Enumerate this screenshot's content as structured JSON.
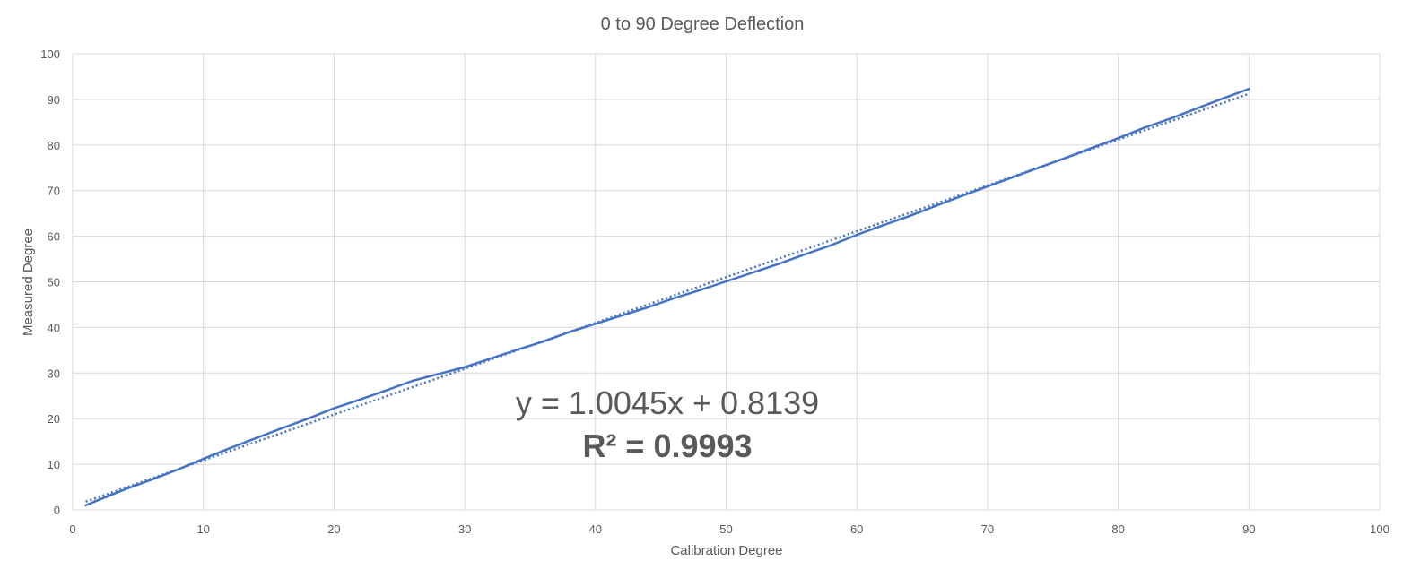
{
  "chart_data": {
    "type": "scatter",
    "title": "0 to 90 Degree Deflection",
    "xlabel": "Calibration Degree",
    "ylabel": "Measured Degree",
    "xlim": [
      0,
      100
    ],
    "ylim": [
      0,
      100
    ],
    "xticks": [
      0,
      10,
      20,
      30,
      40,
      50,
      60,
      70,
      80,
      90,
      100
    ],
    "yticks": [
      0,
      10,
      20,
      30,
      40,
      50,
      60,
      70,
      80,
      90,
      100
    ],
    "grid": true,
    "legend": "none",
    "series": [
      {
        "style": "solid-line",
        "color": "#4472c4",
        "x": [
          1,
          2,
          4,
          6,
          8,
          10,
          12,
          14,
          16,
          18,
          20,
          22,
          24,
          26,
          28,
          30,
          32,
          34,
          36,
          38,
          40,
          42,
          44,
          46,
          48,
          50,
          52,
          54,
          56,
          58,
          60,
          62,
          64,
          66,
          68,
          70,
          72,
          74,
          76,
          78,
          80,
          82,
          84,
          86,
          88,
          90
        ],
        "y": [
          1.0,
          2.2,
          4.5,
          6.6,
          8.8,
          11.2,
          13.5,
          15.7,
          17.9,
          20.0,
          22.3,
          24.2,
          26.2,
          28.3,
          29.8,
          31.3,
          33.2,
          35.1,
          36.9,
          39.0,
          40.8,
          42.6,
          44.4,
          46.4,
          48.2,
          50.1,
          52.0,
          53.9,
          56.0,
          58.0,
          60.3,
          62.4,
          64.4,
          66.6,
          68.8,
          70.9,
          73.0,
          75.1,
          77.2,
          79.4,
          81.5,
          83.8,
          85.8,
          88.0,
          90.2,
          92.3
        ]
      }
    ],
    "trendline": {
      "style": "dotted",
      "color": "#4472c4",
      "slope": 1.0045,
      "intercept": 0.8139,
      "x_range": [
        1,
        90
      ]
    },
    "annotations": {
      "equation": "y = 1.0045x + 0.8139",
      "r_squared": "R² = 0.9993"
    }
  }
}
